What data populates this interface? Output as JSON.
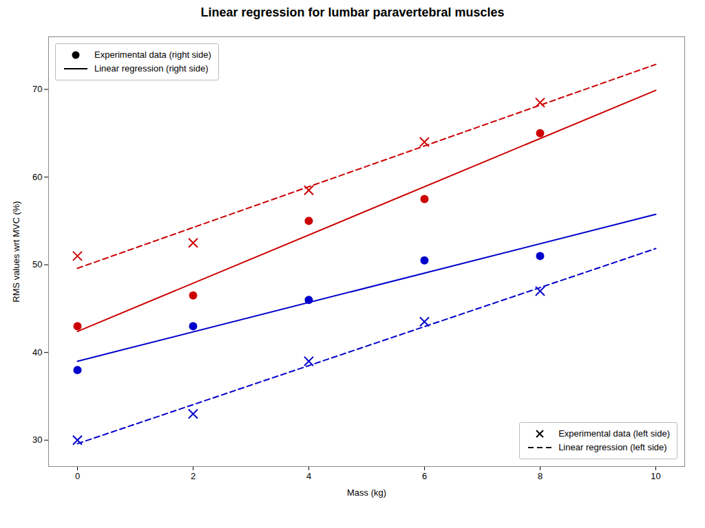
{
  "chart_data": {
    "type": "scatter",
    "title": "Linear regression for lumbar paravertebral muscles",
    "xlabel": "Mass (kg)",
    "ylabel": "RMS values wrt MVC (%)",
    "xlim": [
      -0.5,
      10.5
    ],
    "ylim": [
      27,
      76
    ],
    "xticks": [
      0,
      2,
      4,
      6,
      8,
      10
    ],
    "yticks": [
      30,
      40,
      50,
      60,
      70
    ],
    "grid": false,
    "series": [
      {
        "type": "line",
        "color": "#cc0000",
        "line_style": "solid",
        "x": [
          0,
          10
        ],
        "values": [
          42.4,
          69.9
        ]
      },
      {
        "type": "line",
        "color": "#cc0000",
        "line_style": "dashed",
        "x": [
          0,
          10
        ],
        "values": [
          49.6,
          72.85
        ]
      },
      {
        "type": "line",
        "color": "#0000cc",
        "line_style": "solid",
        "x": [
          0,
          10
        ],
        "values": [
          39.0,
          55.75
        ]
      },
      {
        "type": "line",
        "color": "#0000cc",
        "line_style": "dashed",
        "x": [
          0,
          10
        ],
        "values": [
          29.6,
          51.85
        ]
      },
      {
        "type": "scatter",
        "color": "#cc0000",
        "marker": "circle",
        "x": [
          0,
          2,
          4,
          6,
          8
        ],
        "values": [
          43.0,
          46.5,
          55.0,
          57.5,
          65.0
        ]
      },
      {
        "type": "scatter",
        "color": "#cc0000",
        "marker": "x",
        "x": [
          0,
          2,
          4,
          6,
          8
        ],
        "values": [
          51.0,
          52.5,
          58.5,
          64.0,
          68.5
        ]
      },
      {
        "type": "scatter",
        "color": "#0000cc",
        "marker": "circle",
        "x": [
          0,
          2,
          4,
          6,
          8
        ],
        "values": [
          38.0,
          43.0,
          46.0,
          50.5,
          51.0
        ]
      },
      {
        "type": "scatter",
        "color": "#0000cc",
        "marker": "x",
        "x": [
          0,
          2,
          4,
          6,
          8
        ],
        "values": [
          30.0,
          33.0,
          39.0,
          43.5,
          47.0
        ]
      }
    ],
    "legends": [
      {
        "legend": "upper left",
        "entries": [
          {
            "label": "Experimental data (right side)",
            "color": "#000000",
            "marker": "circle"
          },
          {
            "label": "Linear regression (right side)",
            "color": "#000000",
            "line_style": "solid"
          }
        ]
      },
      {
        "legend": "lower right",
        "entries": [
          {
            "label": "Experimental data (left side)",
            "color": "#000000",
            "marker": "x"
          },
          {
            "label": "Linear regression (left side)",
            "color": "#000000",
            "line_style": "dashed"
          }
        ]
      }
    ]
  }
}
